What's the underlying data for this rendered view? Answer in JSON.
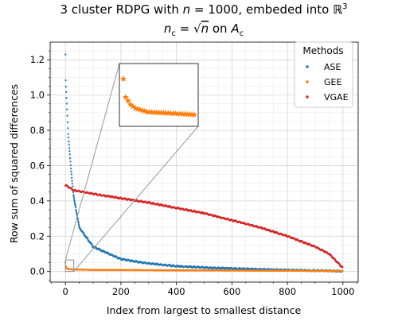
{
  "chart_data": {
    "type": "scatter",
    "title_line1": "3 cluster RDPG with ",
    "title_n": "n",
    "title_eq": " = 1000, embeded into ",
    "title_R": "ℝ",
    "title_R_sup": "3",
    "title_line2_nc": "n",
    "title_line2_nc_sub": "c",
    "title_line2_eq": " = ",
    "title_line2_sqrt": "√",
    "title_line2_n": "n",
    "title_line2_on": " on ",
    "title_line2_A": "A",
    "title_line2_A_sub": "c",
    "xlabel": "Index from largest to smallest distance",
    "ylabel": "Row sum of squared differences",
    "xlim": [
      -55,
      1055
    ],
    "ylim": [
      -0.06,
      1.3
    ],
    "xticks": [
      0,
      200,
      400,
      600,
      800,
      1000
    ],
    "xtick_labels": [
      "0",
      "200",
      "400",
      "600",
      "800",
      "1000"
    ],
    "yticks": [
      0.0,
      0.2,
      0.4,
      0.6,
      0.8,
      1.0,
      1.2
    ],
    "ytick_labels": [
      "0.0",
      "0.2",
      "0.4",
      "0.6",
      "0.8",
      "1.0",
      "1.2"
    ],
    "grid": true,
    "legend": {
      "title": "Methods",
      "position": "top-right",
      "entries": [
        "ASE",
        "GEE",
        "VGAE"
      ]
    },
    "series": [
      {
        "name": "ASE",
        "color": "#1f77b4",
        "n": 1000,
        "key_points": [
          [
            0,
            1.23
          ],
          [
            1,
            1.08
          ],
          [
            5,
            0.95
          ],
          [
            10,
            0.78
          ],
          [
            20,
            0.58
          ],
          [
            30,
            0.42
          ],
          [
            50,
            0.25
          ],
          [
            100,
            0.14
          ],
          [
            200,
            0.07
          ],
          [
            300,
            0.045
          ],
          [
            400,
            0.03
          ],
          [
            500,
            0.022
          ],
          [
            600,
            0.017
          ],
          [
            700,
            0.012
          ],
          [
            800,
            0.008
          ],
          [
            900,
            0.005
          ],
          [
            1000,
            0.002
          ]
        ]
      },
      {
        "name": "GEE",
        "color": "#ff7f0e",
        "n": 1000,
        "key_points": [
          [
            0,
            0.05
          ],
          [
            1,
            0.03
          ],
          [
            3,
            0.022
          ],
          [
            5,
            0.018
          ],
          [
            10,
            0.014
          ],
          [
            30,
            0.011
          ],
          [
            100,
            0.009
          ],
          [
            500,
            0.006
          ],
          [
            1000,
            0.003
          ]
        ]
      },
      {
        "name": "VGAE",
        "color": "#d62728",
        "n": 1000,
        "key_points": [
          [
            0,
            0.49
          ],
          [
            30,
            0.46
          ],
          [
            100,
            0.44
          ],
          [
            200,
            0.415
          ],
          [
            300,
            0.39
          ],
          [
            400,
            0.36
          ],
          [
            500,
            0.33
          ],
          [
            600,
            0.29
          ],
          [
            700,
            0.25
          ],
          [
            800,
            0.2
          ],
          [
            900,
            0.14
          ],
          [
            950,
            0.1
          ],
          [
            1000,
            0.02
          ]
        ]
      }
    ],
    "inset": {
      "x_range": [
        0,
        30
      ],
      "y_range": [
        0.0,
        0.065
      ],
      "series": "GEE"
    }
  }
}
